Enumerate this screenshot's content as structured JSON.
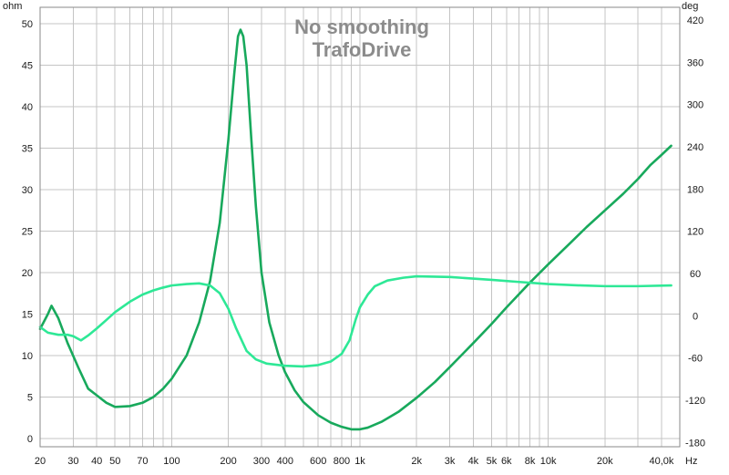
{
  "chart_data": {
    "type": "line",
    "title": [
      "No smoothing",
      "TrafoDrive"
    ],
    "x_unit": "Hz",
    "y_left_unit": "ohm",
    "y_right_unit": "deg",
    "x_scale": "log",
    "xlim": [
      20,
      50000
    ],
    "ylim_left": [
      -1,
      52
    ],
    "ylim_right": [
      -186,
      438
    ],
    "grid": true,
    "x_ticks": [
      {
        "value": 20,
        "label": "20"
      },
      {
        "value": 30,
        "label": "30"
      },
      {
        "value": 40,
        "label": "40"
      },
      {
        "value": 50,
        "label": "50"
      },
      {
        "value": 70,
        "label": "70"
      },
      {
        "value": 100,
        "label": "100"
      },
      {
        "value": 200,
        "label": "200"
      },
      {
        "value": 300,
        "label": "300"
      },
      {
        "value": 400,
        "label": "400"
      },
      {
        "value": 600,
        "label": "600"
      },
      {
        "value": 800,
        "label": "800"
      },
      {
        "value": 1000,
        "label": "1k"
      },
      {
        "value": 2000,
        "label": "2k"
      },
      {
        "value": 3000,
        "label": "3k"
      },
      {
        "value": 4000,
        "label": "4k"
      },
      {
        "value": 5000,
        "label": "5k"
      },
      {
        "value": 6000,
        "label": "6k"
      },
      {
        "value": 8000,
        "label": "8k"
      },
      {
        "value": 10000,
        "label": "10k"
      },
      {
        "value": 20000,
        "label": "20k"
      },
      {
        "value": 40000,
        "label": "40,0k"
      }
    ],
    "x_minor_grid": [
      20,
      30,
      40,
      50,
      60,
      70,
      80,
      90,
      100,
      200,
      300,
      400,
      500,
      600,
      700,
      800,
      900,
      1000,
      2000,
      3000,
      4000,
      5000,
      6000,
      7000,
      8000,
      9000,
      10000,
      20000,
      30000,
      40000
    ],
    "y_left_ticks": [
      {
        "value": 0,
        "label": "0"
      },
      {
        "value": 5,
        "label": "5"
      },
      {
        "value": 10,
        "label": "10"
      },
      {
        "value": 15,
        "label": "15"
      },
      {
        "value": 20,
        "label": "20"
      },
      {
        "value": 25,
        "label": "25"
      },
      {
        "value": 30,
        "label": "30"
      },
      {
        "value": 35,
        "label": "35"
      },
      {
        "value": 40,
        "label": "40"
      },
      {
        "value": 45,
        "label": "45"
      },
      {
        "value": 50,
        "label": "50"
      }
    ],
    "y_right_ticks": [
      {
        "value": -180,
        "label": "-180"
      },
      {
        "value": -120,
        "label": "-120"
      },
      {
        "value": -60,
        "label": "-60"
      },
      {
        "value": 0,
        "label": "0"
      },
      {
        "value": 60,
        "label": "60"
      },
      {
        "value": 120,
        "label": "120"
      },
      {
        "value": 180,
        "label": "180"
      },
      {
        "value": 240,
        "label": "240"
      },
      {
        "value": 300,
        "label": "300"
      },
      {
        "value": 360,
        "label": "360"
      },
      {
        "value": 420,
        "label": "420"
      }
    ],
    "series": [
      {
        "axis": "left",
        "color": "#18a95c",
        "points": [
          [
            20,
            13.2
          ],
          [
            22,
            15.0
          ],
          [
            23,
            16.0
          ],
          [
            25,
            14.5
          ],
          [
            28,
            11.5
          ],
          [
            32,
            8.5
          ],
          [
            36,
            6.0
          ],
          [
            40,
            5.2
          ],
          [
            45,
            4.3
          ],
          [
            50,
            3.8
          ],
          [
            60,
            3.9
          ],
          [
            70,
            4.3
          ],
          [
            80,
            5.0
          ],
          [
            90,
            6.0
          ],
          [
            100,
            7.2
          ],
          [
            120,
            10.0
          ],
          [
            140,
            14.0
          ],
          [
            160,
            19.0
          ],
          [
            180,
            26.0
          ],
          [
            200,
            36.0
          ],
          [
            215,
            44.0
          ],
          [
            225,
            48.5
          ],
          [
            232,
            49.3
          ],
          [
            240,
            48.5
          ],
          [
            250,
            45.0
          ],
          [
            265,
            36.0
          ],
          [
            280,
            28.0
          ],
          [
            300,
            20.0
          ],
          [
            330,
            14.0
          ],
          [
            370,
            10.0
          ],
          [
            400,
            8.0
          ],
          [
            450,
            5.8
          ],
          [
            500,
            4.4
          ],
          [
            600,
            2.8
          ],
          [
            700,
            1.9
          ],
          [
            800,
            1.4
          ],
          [
            900,
            1.1
          ],
          [
            1000,
            1.1
          ],
          [
            1100,
            1.3
          ],
          [
            1300,
            2.0
          ],
          [
            1600,
            3.2
          ],
          [
            2000,
            4.9
          ],
          [
            2500,
            6.8
          ],
          [
            3000,
            8.6
          ],
          [
            4000,
            11.5
          ],
          [
            5000,
            13.8
          ],
          [
            6000,
            15.8
          ],
          [
            8000,
            18.8
          ],
          [
            10000,
            21.0
          ],
          [
            13000,
            23.5
          ],
          [
            16000,
            25.5
          ],
          [
            20000,
            27.5
          ],
          [
            25000,
            29.5
          ],
          [
            30000,
            31.3
          ],
          [
            35000,
            33.0
          ],
          [
            40000,
            34.2
          ],
          [
            45000,
            35.3
          ]
        ]
      },
      {
        "axis": "right",
        "color": "#2ee896",
        "points": [
          [
            20,
            -16
          ],
          [
            22,
            -24
          ],
          [
            25,
            -27
          ],
          [
            28,
            -27
          ],
          [
            30,
            -29
          ],
          [
            33,
            -35
          ],
          [
            36,
            -28
          ],
          [
            40,
            -18
          ],
          [
            45,
            -6
          ],
          [
            50,
            5
          ],
          [
            60,
            20
          ],
          [
            70,
            30
          ],
          [
            80,
            36
          ],
          [
            90,
            40
          ],
          [
            100,
            43
          ],
          [
            120,
            45
          ],
          [
            140,
            46
          ],
          [
            160,
            43
          ],
          [
            180,
            32
          ],
          [
            200,
            10
          ],
          [
            220,
            -18
          ],
          [
            250,
            -50
          ],
          [
            280,
            -62
          ],
          [
            320,
            -68
          ],
          [
            400,
            -71
          ],
          [
            500,
            -72
          ],
          [
            600,
            -70
          ],
          [
            700,
            -65
          ],
          [
            800,
            -54
          ],
          [
            880,
            -35
          ],
          [
            950,
            -5
          ],
          [
            1000,
            12
          ],
          [
            1100,
            30
          ],
          [
            1200,
            42
          ],
          [
            1400,
            50
          ],
          [
            1700,
            54
          ],
          [
            2000,
            56
          ],
          [
            3000,
            55
          ],
          [
            5000,
            51
          ],
          [
            7000,
            48
          ],
          [
            10000,
            45
          ],
          [
            15000,
            43
          ],
          [
            20000,
            42
          ],
          [
            30000,
            42
          ],
          [
            45000,
            43
          ]
        ]
      }
    ]
  }
}
